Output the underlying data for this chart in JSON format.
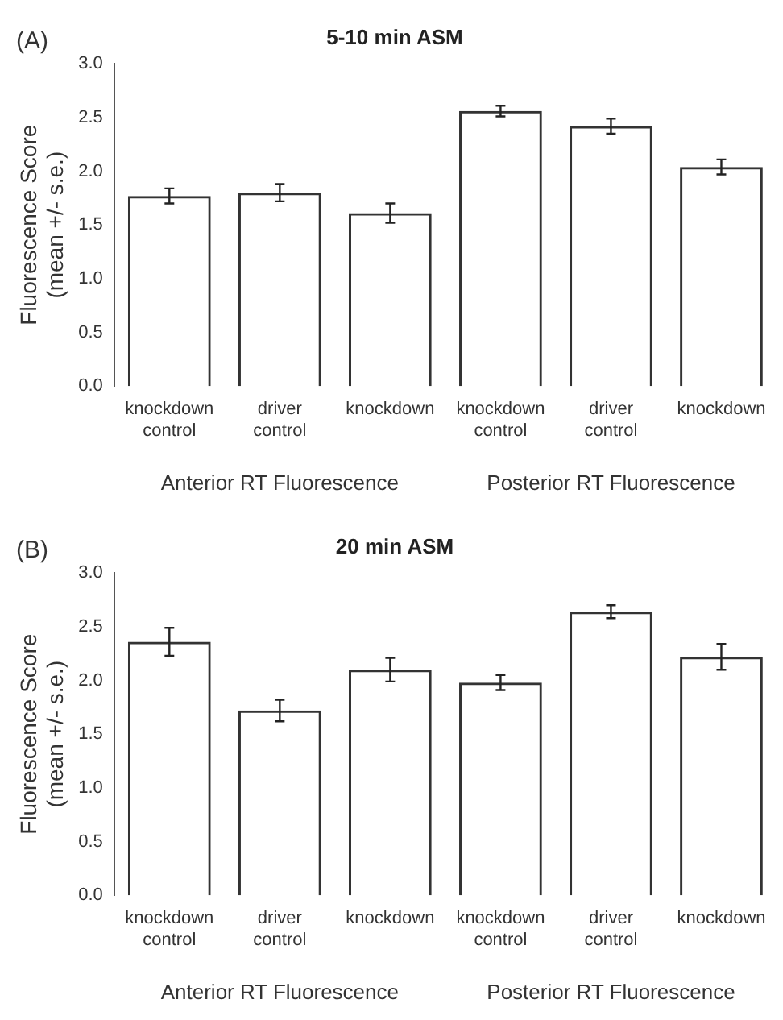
{
  "chart_data": [
    {
      "type": "bar",
      "title": "5-10 min ASM",
      "ylabel": "Fluorescence Score (mean +/- s.e.)",
      "categories": [
        "knockdown control",
        "driver control",
        "knockdown",
        "knockdown control",
        "driver control",
        "knockdown"
      ],
      "values": [
        1.77,
        1.8,
        1.61,
        2.56,
        2.42,
        2.04
      ],
      "errors": [
        0.07,
        0.08,
        0.09,
        0.05,
        0.07,
        0.07
      ],
      "color": "#333333",
      "ylim": [
        0,
        3
      ],
      "yticks": [
        {
          "value": 0,
          "label": "0.0"
        },
        0.5,
        {
          "value": 1,
          "label": "1.0"
        },
        1.5,
        {
          "value": 2,
          "label": "2.0"
        },
        2.5,
        {
          "value": 3,
          "label": "3.0"
        }
      ],
      "grid": false,
      "legend": false,
      "annotations": [
        "(A)",
        "Anterior RT Fluorescence",
        "Posterior RT Fluorescence"
      ]
    },
    {
      "type": "bar",
      "title": "20 min ASM",
      "ylabel": "Fluorescence Score (mean +/- s.e.)",
      "categories": [
        "knockdown control",
        "driver control",
        "knockdown",
        "knockdown control",
        "driver control",
        "knockdown"
      ],
      "values": [
        2.36,
        1.72,
        2.1,
        1.98,
        2.64,
        2.22
      ],
      "errors": [
        0.13,
        0.1,
        0.11,
        0.07,
        0.06,
        0.12
      ],
      "color": "#333333",
      "ylim": [
        0,
        3
      ],
      "yticks": [
        {
          "value": 0,
          "label": "0.0"
        },
        0.5,
        {
          "value": 1,
          "label": "1.0"
        },
        1.5,
        {
          "value": 2,
          "label": "2.0"
        },
        2.5,
        {
          "value": 3,
          "label": "3.0"
        }
      ],
      "grid": false,
      "legend": false,
      "annotations": [
        "(B)",
        "Anterior RT Fluorescence",
        "Posterior RT Fluorescence"
      ]
    }
  ]
}
